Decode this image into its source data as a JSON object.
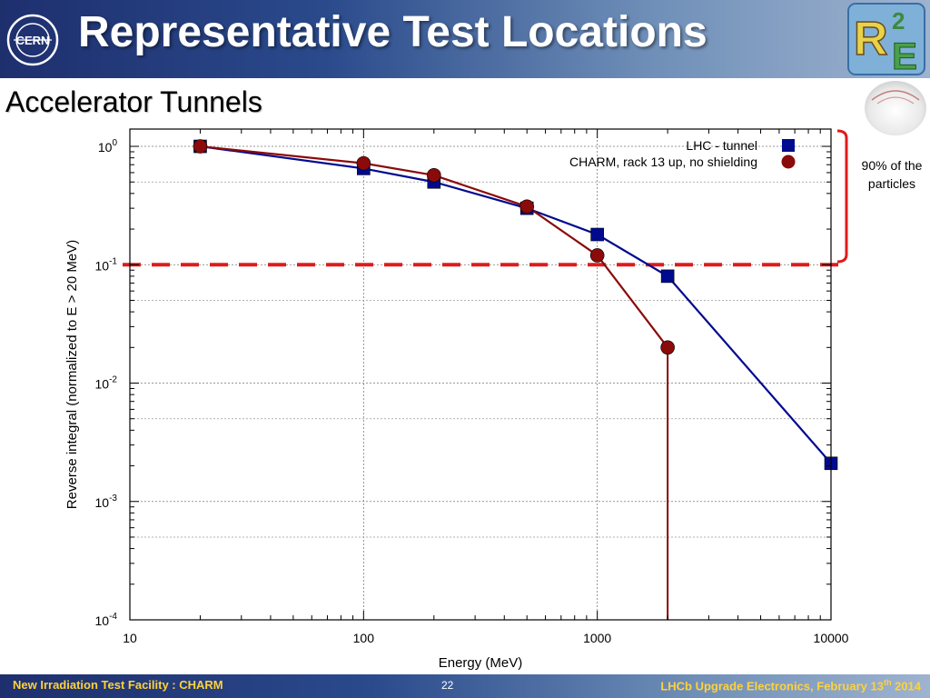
{
  "slide": {
    "title": "Representative Test Locations",
    "subtitle": "Accelerator Tunnels",
    "annotation_line1": "90% of the",
    "annotation_line2": "particles"
  },
  "footer": {
    "left": "New Irradiation Test Facility : CHARM",
    "page": "22",
    "right_main": "LHCb Upgrade Electronics, February 13",
    "right_sup": "th",
    "right_year": " 2014"
  },
  "logos": {
    "cern_text": "CERN",
    "r2e_r": "R",
    "r2e_2": "2",
    "r2e_e": "E"
  },
  "colors": {
    "lhc": "#000a8f",
    "charm": "#8b0a0a",
    "threshold": "#e01b1b",
    "bracket": "#e01b1b"
  },
  "chart_data": {
    "type": "line",
    "xscale": "log",
    "yscale": "log",
    "xlabel": "Energy (MeV)",
    "ylabel": "Reverse integral (normalized to E > 20 MeV)",
    "xlim": [
      10,
      10000
    ],
    "ylim": [
      0.0001,
      1.4
    ],
    "grid": true,
    "legend": "top-right",
    "x_ticks": [
      {
        "value": 10,
        "label": "10"
      },
      {
        "value": 100,
        "label": "100"
      },
      {
        "value": 1000,
        "label": "1000"
      },
      {
        "value": 10000,
        "label": "10000"
      }
    ],
    "y_ticks": [
      {
        "value": 1,
        "base": "10",
        "exp": "0"
      },
      {
        "value": 0.1,
        "base": "10",
        "exp": "-1"
      },
      {
        "value": 0.01,
        "base": "10",
        "exp": "-2"
      },
      {
        "value": 0.001,
        "base": "10",
        "exp": "-3"
      },
      {
        "value": 0.0001,
        "base": "10",
        "exp": "-4"
      }
    ],
    "threshold": 0.1,
    "series": [
      {
        "name": "LHC - tunnel",
        "marker": "square",
        "points": [
          [
            20,
            1.0
          ],
          [
            100,
            0.65
          ],
          [
            200,
            0.5
          ],
          [
            500,
            0.3
          ],
          [
            1000,
            0.18
          ],
          [
            2000,
            0.08
          ],
          [
            10000,
            0.0021
          ]
        ]
      },
      {
        "name": "CHARM, rack 13 up, no shielding",
        "marker": "circle",
        "drop_to_axis": true,
        "points": [
          [
            20,
            1.0
          ],
          [
            100,
            0.72
          ],
          [
            200,
            0.57
          ],
          [
            500,
            0.31
          ],
          [
            1000,
            0.12
          ],
          [
            2000,
            0.02
          ]
        ]
      }
    ]
  }
}
